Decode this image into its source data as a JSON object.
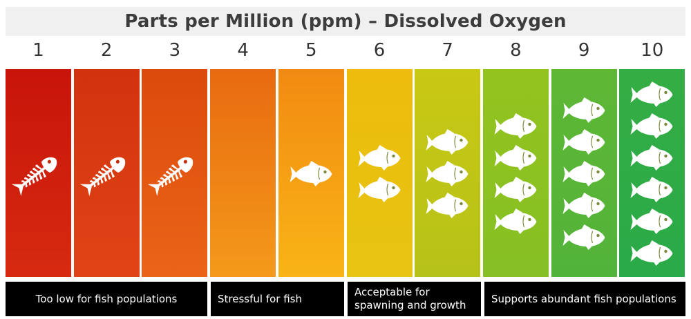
{
  "title": "Parts per Million (ppm) – Dissolved Oxygen",
  "chart_data": {
    "type": "table",
    "title": "Parts per Million (ppm) – Dissolved Oxygen",
    "columns": [
      {
        "ppm": "1",
        "color_top": "#c8140a",
        "color_bottom": "#d62a10",
        "symbol": "fish-skeleton-icon",
        "fish_count": 1
      },
      {
        "ppm": "2",
        "color_top": "#d2320e",
        "color_bottom": "#e04416",
        "symbol": "fish-skeleton-icon",
        "fish_count": 1
      },
      {
        "ppm": "3",
        "color_top": "#dc4a0c",
        "color_bottom": "#ea6418",
        "symbol": "fish-skeleton-icon",
        "fish_count": 1
      },
      {
        "ppm": "4",
        "color_top": "#e86a10",
        "color_bottom": "#f49a1a",
        "symbol": "none",
        "fish_count": 0
      },
      {
        "ppm": "5",
        "color_top": "#f28a12",
        "color_bottom": "#f9b416",
        "symbol": "fish-icon",
        "fish_count": 1
      },
      {
        "ppm": "6",
        "color_top": "#edbc0c",
        "color_bottom": "#e7c412",
        "symbol": "fish-icon",
        "fish_count": 2
      },
      {
        "ppm": "7",
        "color_top": "#c9c814",
        "color_bottom": "#b6c218",
        "symbol": "fish-icon",
        "fish_count": 3
      },
      {
        "ppm": "8",
        "color_top": "#93c31e",
        "color_bottom": "#86c024",
        "symbol": "fish-icon",
        "fish_count": 4
      },
      {
        "ppm": "9",
        "color_top": "#5fb734",
        "color_bottom": "#52b33a",
        "symbol": "fish-icon",
        "fish_count": 5
      },
      {
        "ppm": "10",
        "color_top": "#34ad44",
        "color_bottom": "#2aaa48",
        "symbol": "fish-icon",
        "fish_count": 6
      }
    ],
    "categories": [
      {
        "label": "Too low for fish populations",
        "from_ppm": 1,
        "to_ppm": 3
      },
      {
        "label": "Stressful for fish",
        "from_ppm": 4,
        "to_ppm": 5
      },
      {
        "label": "Acceptable for spawning and growth",
        "from_ppm": 6,
        "to_ppm": 7
      },
      {
        "label": "Supports abundant fish populations",
        "from_ppm": 8,
        "to_ppm": 10
      }
    ]
  }
}
